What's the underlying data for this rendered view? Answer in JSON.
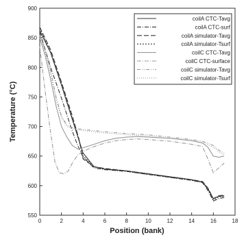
{
  "chart_data": {
    "type": "line",
    "xlabel": "Position (bank)",
    "ylabel": "Temperature (°C)",
    "xlim": [
      0,
      18
    ],
    "ylim": [
      550,
      900
    ],
    "xticks": [
      "0",
      "2",
      "4",
      "6",
      "8",
      "10",
      "12",
      "14",
      "16",
      "18"
    ],
    "yticks": [
      "550",
      "600",
      "650",
      "700",
      "750",
      "800",
      "850",
      "900"
    ],
    "grid": false,
    "legend_position": "top-right",
    "series": [
      {
        "name": "coilA CTC-Tavg",
        "x": [
          0,
          1,
          2,
          3,
          4,
          5,
          6,
          8,
          10,
          12,
          14,
          15,
          15.5,
          16,
          16.5,
          17
        ],
        "y": [
          862,
          825,
          770,
          712,
          655,
          632,
          628,
          625,
          620,
          615,
          610,
          606,
          595,
          578,
          582,
          583
        ]
      },
      {
        "name": "coilA CTC-surf",
        "x": [
          0,
          0.5,
          1,
          2,
          3,
          3.5,
          4,
          5,
          6,
          8,
          10,
          12,
          14,
          15,
          15.5,
          16,
          16.5,
          17
        ],
        "y": [
          860,
          830,
          800,
          748,
          692,
          668,
          648,
          630,
          627,
          624,
          619,
          614,
          609,
          605,
          592,
          574,
          578,
          580
        ]
      },
      {
        "name": "coilA simulator-Tavg",
        "x": [
          0,
          1,
          2,
          3,
          3.6,
          4,
          5,
          6,
          8,
          10,
          12,
          14,
          15,
          15.5,
          16,
          16.5,
          17
        ],
        "y": [
          868,
          830,
          775,
          718,
          680,
          645,
          632,
          629,
          625,
          620,
          615,
          610,
          607,
          596,
          578,
          583,
          584
        ]
      },
      {
        "name": "coilA simulator-Tsurf",
        "x": [
          0,
          1,
          2,
          3,
          3.5,
          4,
          5,
          6,
          8,
          10,
          12,
          14,
          15,
          15.5,
          16,
          16.5,
          17
        ],
        "y": [
          866,
          826,
          772,
          714,
          684,
          650,
          632,
          628,
          624,
          619,
          614,
          609,
          606,
          594,
          576,
          581,
          582
        ]
      },
      {
        "name": "coilC CTC-Tavg",
        "x": [
          0,
          0.5,
          1,
          1.5,
          2,
          2.5,
          3,
          3.5,
          4,
          5,
          6,
          7,
          8,
          9,
          10,
          12,
          14,
          15,
          15.5,
          16,
          16.5,
          17
        ],
        "y": [
          850,
          820,
          780,
          735,
          700,
          682,
          668,
          662,
          664,
          670,
          676,
          680,
          682,
          683,
          682,
          680,
          676,
          672,
          665,
          650,
          648,
          650
        ]
      },
      {
        "name": "coilC CTC-surface",
        "x": [
          0,
          0.5,
          1,
          1.4,
          1.8,
          2.2,
          2.6,
          3,
          3.5,
          4,
          5,
          6,
          7,
          8,
          9,
          10,
          12,
          14,
          15,
          15.5,
          16,
          16.5,
          17
        ],
        "y": [
          835,
          760,
          690,
          640,
          622,
          620,
          624,
          638,
          652,
          658,
          666,
          672,
          676,
          678,
          679,
          678,
          675,
          670,
          666,
          645,
          622,
          630,
          638
        ]
      },
      {
        "name": "coilC simulator-Tavg",
        "x": [
          0,
          0.5,
          1,
          1.5,
          2,
          2.5,
          3,
          3.5,
          4,
          5,
          6,
          8,
          10,
          12,
          14,
          15,
          16,
          16.5,
          17
        ],
        "y": [
          855,
          830,
          795,
          750,
          718,
          702,
          698,
          696,
          695,
          693,
          691,
          688,
          686,
          682,
          678,
          675,
          668,
          660,
          655
        ]
      },
      {
        "name": "coilC simulator-Tsurf",
        "x": [
          0,
          0.5,
          1,
          1.5,
          2,
          2.5,
          3,
          3.5,
          4,
          5,
          6,
          8,
          10,
          12,
          14,
          15,
          16,
          16.5,
          17
        ],
        "y": [
          852,
          825,
          790,
          745,
          715,
          700,
          696,
          694,
          693,
          691,
          689,
          686,
          684,
          680,
          676,
          673,
          665,
          657,
          652
        ]
      }
    ]
  }
}
